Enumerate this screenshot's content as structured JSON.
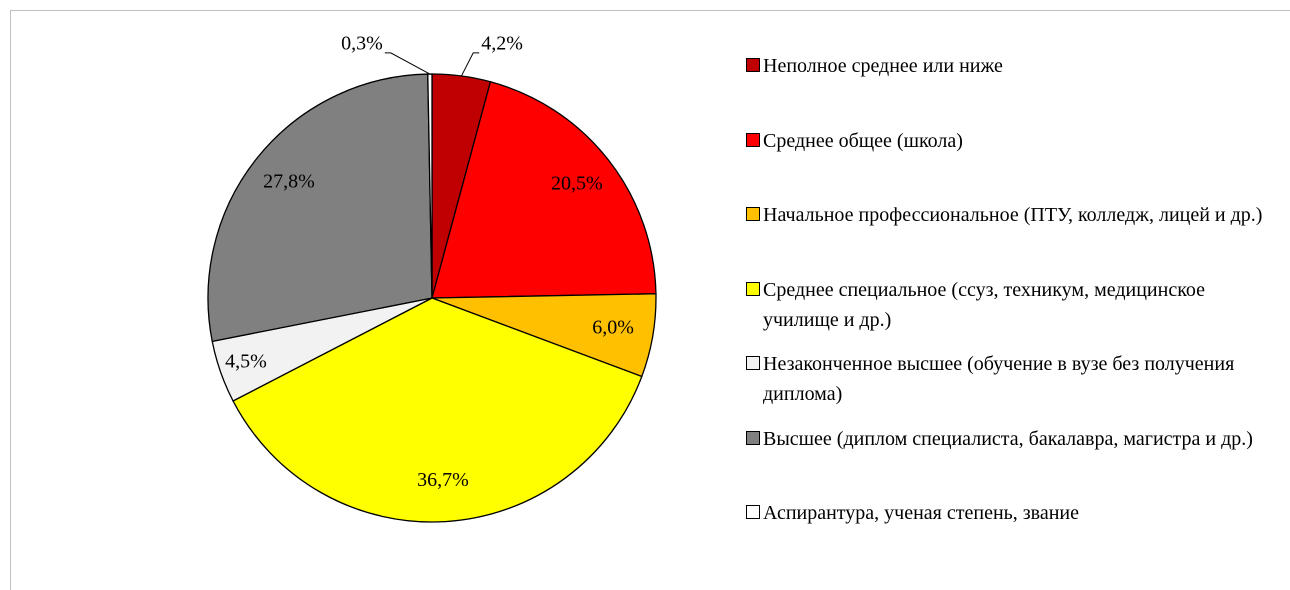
{
  "chart_data": {
    "type": "pie",
    "categories": [
      "Неполное среднее или ниже",
      "Среднее общее (школа)",
      "Начальное профессиональное (ПТУ, колледж, лицей и др.)",
      "Среднее специальное (ссуз, техникум, медицинское училище и др.)",
      "Незаконченное высшее (обучение в вузе без получения диплома)",
      "Высшее (диплом специалиста, бакалавра, магистра и др.)",
      "Аспирантура, ученая степень, звание"
    ],
    "values": [
      4.2,
      20.5,
      6.0,
      36.7,
      4.5,
      27.8,
      0.3
    ],
    "value_labels": [
      "4,2%",
      "20,5%",
      "6,0%",
      "36,7%",
      "4,5%",
      "27,8%",
      "0,3%"
    ],
    "colors": [
      "#c00000",
      "#ff0000",
      "#ffc000",
      "#ffff00",
      "#f2f2f2",
      "#808080",
      "#ffffff"
    ],
    "legend": "right"
  }
}
